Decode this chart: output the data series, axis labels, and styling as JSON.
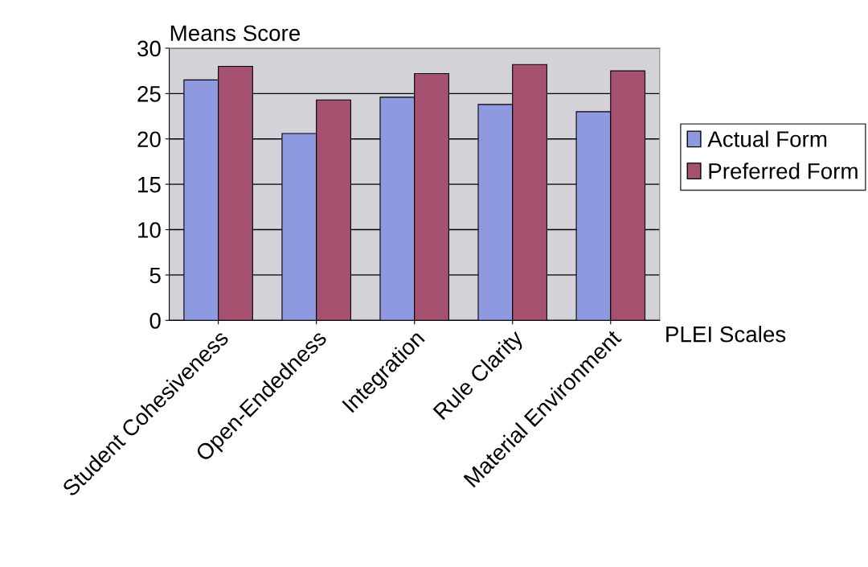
{
  "chart_data": {
    "type": "bar",
    "xlabel": "PLEI Scales",
    "ylabel": "Means Score",
    "categories": [
      "Student Cohesiveness",
      "Open-Endedness",
      "Integration",
      "Rule Clarity",
      "Material Environment"
    ],
    "series": [
      {
        "name": "Actual Form",
        "color": "#8e99df",
        "values": [
          26.5,
          20.6,
          24.6,
          23.8,
          23.0
        ]
      },
      {
        "name": "Preferred Form",
        "color": "#a5516f",
        "values": [
          28.0,
          24.3,
          27.2,
          28.2,
          27.5
        ]
      }
    ],
    "ylim": [
      0,
      30
    ],
    "yticks": [
      0,
      5,
      10,
      15,
      20,
      25,
      30
    ],
    "grid": "y",
    "legend": "right"
  }
}
